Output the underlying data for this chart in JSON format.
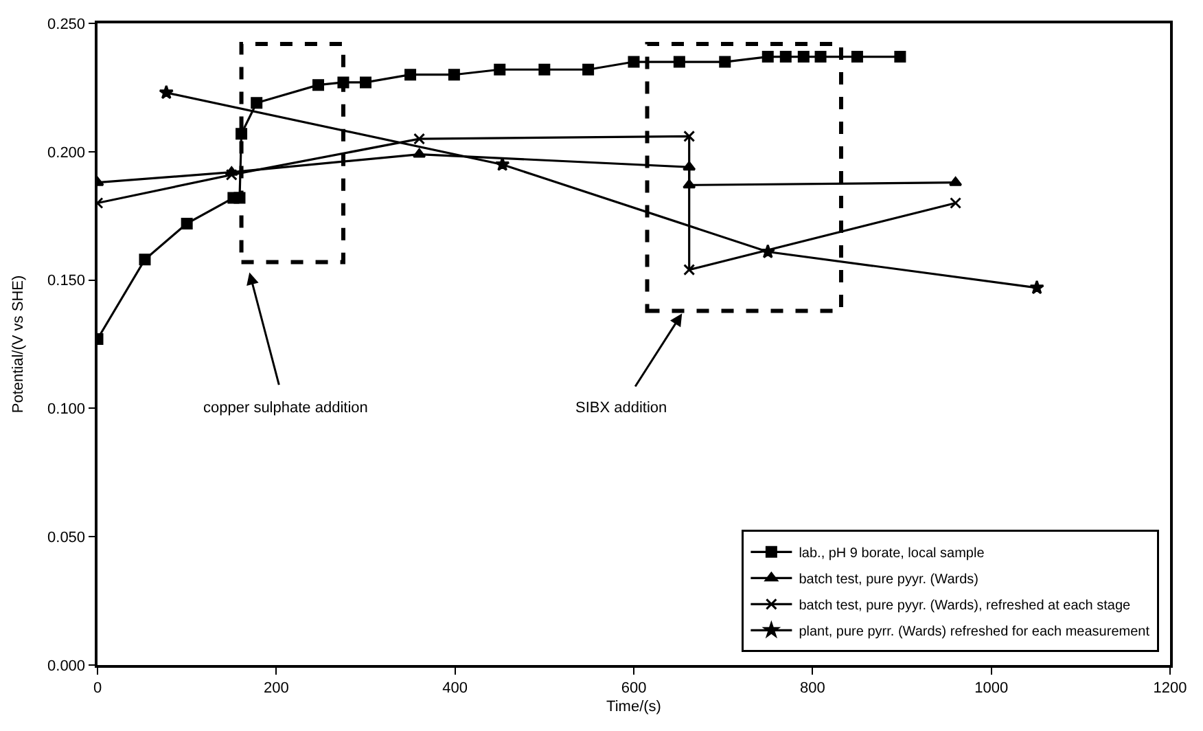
{
  "chart_data": {
    "type": "line",
    "xlabel": "Time/(s)",
    "ylabel": "Potential/(V vs SHE)",
    "xlim": [
      0,
      1200
    ],
    "xticks": [
      0,
      200,
      400,
      600,
      800,
      1000,
      1200
    ],
    "ylim": [
      0,
      0.25
    ],
    "yticks": [
      {
        "value": 0,
        "label": "0.000"
      },
      {
        "value": 0.05,
        "label": "0.050"
      },
      {
        "value": 0.1,
        "label": "0.100"
      },
      {
        "value": 0.15,
        "label": "0.150"
      },
      {
        "value": 0.2,
        "label": "0.200"
      },
      {
        "value": 0.25,
        "label": "0.250"
      }
    ],
    "grid": false,
    "legend": "bottom right",
    "line_style": "solid",
    "series": [
      {
        "name": "lab., pH 9 borate, local sample",
        "color": "#000000",
        "marker": "square",
        "x": [
          0,
          53,
          100,
          152,
          159,
          161,
          178,
          247,
          275,
          300,
          350,
          399,
          450,
          500,
          549,
          600,
          651,
          702,
          750,
          770,
          790,
          809,
          850,
          898
        ],
        "values": [
          0.127,
          0.158,
          0.172,
          0.182,
          0.182,
          0.207,
          0.219,
          0.226,
          0.227,
          0.227,
          0.23,
          0.23,
          0.232,
          0.232,
          0.232,
          0.235,
          0.235,
          0.235,
          0.237,
          0.237,
          0.237,
          0.237,
          0.237,
          0.237
        ]
      },
      {
        "name": "batch test, pure pyyr. (Wards)",
        "color": "#000000",
        "marker": "triangle",
        "x": [
          0,
          150,
          360,
          662,
          662,
          960
        ],
        "values": [
          0.188,
          0.192,
          0.199,
          0.194,
          0.187,
          0.188
        ]
      },
      {
        "name": "batch test, pure pyyr. (Wards), refreshed at each stage",
        "color": "#000000",
        "marker": "cross",
        "x": [
          0,
          150,
          360,
          662,
          662,
          960
        ],
        "values": [
          0.18,
          0.191,
          0.205,
          0.206,
          0.154,
          0.18
        ]
      },
      {
        "name": "plant, pure pyrr. (Wards) refreshed for each measurement",
        "color": "#000000",
        "marker": "star",
        "x": [
          77,
          453,
          750,
          1051
        ],
        "values": [
          0.223,
          0.195,
          0.161,
          0.147
        ]
      }
    ],
    "annotations": [
      "copper sulphate addition",
      "SIBX addition"
    ]
  }
}
